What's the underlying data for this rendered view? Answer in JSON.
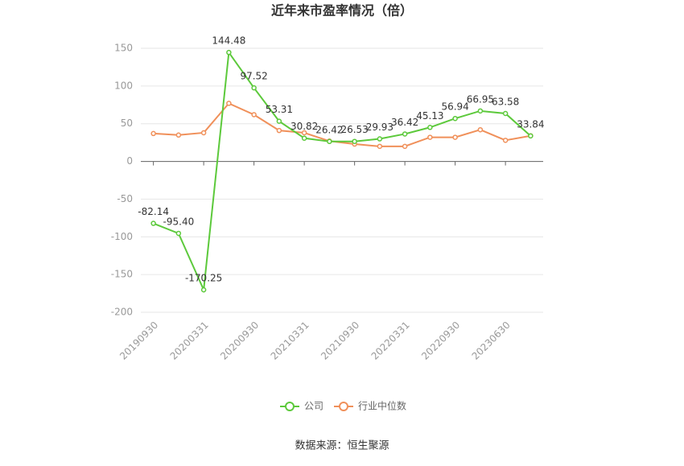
{
  "chart_data": {
    "type": "line",
    "title": "近年来市盈率情况（倍）",
    "categories": [
      "20190930",
      null,
      "20200331",
      null,
      "20200930",
      null,
      "20210331",
      null,
      "20210930",
      null,
      "20220331",
      null,
      "20220930",
      null,
      "20230630",
      null
    ],
    "series": [
      {
        "name": "公司",
        "color": "#5cc93b",
        "values": [
          -82.14,
          -95.4,
          -170.25,
          144.48,
          97.52,
          53.31,
          30.82,
          26.42,
          26.53,
          29.93,
          36.42,
          45.13,
          56.94,
          66.95,
          63.58,
          33.84
        ],
        "value_labels": [
          "-82.14",
          "-95.40",
          "-170.25",
          "144.48",
          "97.52",
          "53.31",
          "30.82",
          "26.42",
          "26.53",
          "29.93",
          "36.42",
          "45.13",
          "56.94",
          "66.95",
          "63.58",
          "33.84"
        ]
      },
      {
        "name": "行业中位数",
        "color": "#f0905a",
        "values": [
          37,
          35,
          38,
          77,
          62,
          41,
          38,
          27,
          23,
          20,
          20,
          32,
          32,
          42,
          28,
          34
        ]
      }
    ],
    "ylim": [
      -200,
      150
    ],
    "yticks": [
      -200,
      -150,
      -100,
      -50,
      0,
      50,
      100,
      150
    ],
    "grid": true,
    "source": "数据来源：恒生聚源"
  }
}
